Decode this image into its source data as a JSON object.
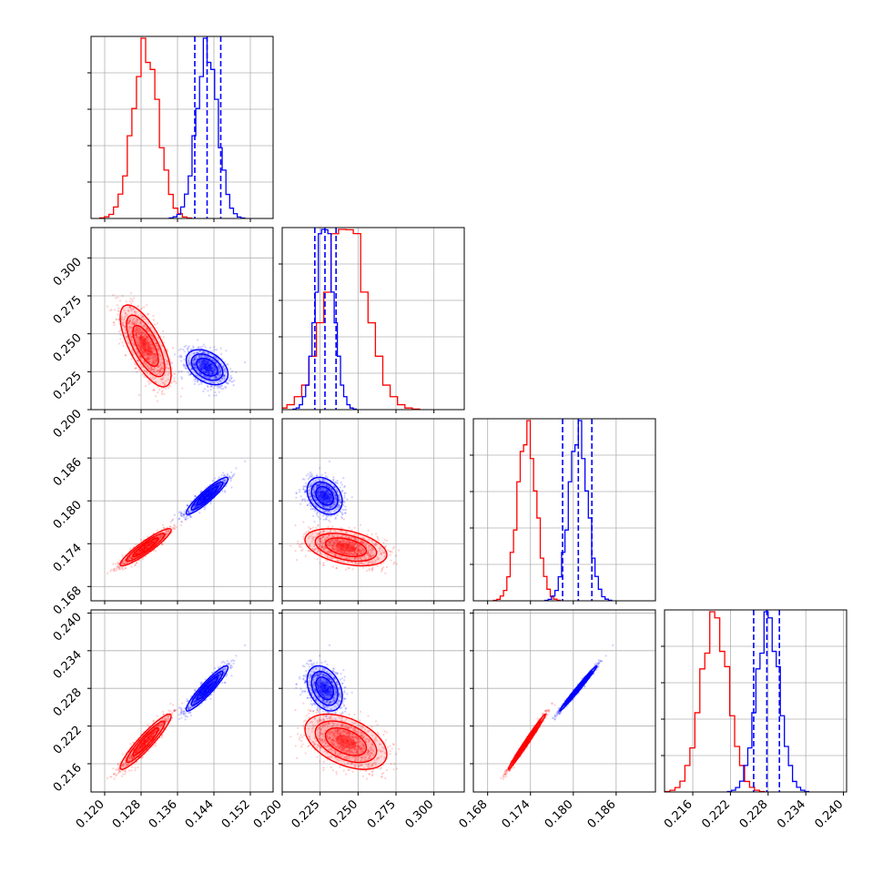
{
  "figure": {
    "type": "corner-plot",
    "grid": true,
    "colors": {
      "series_a": "#ff0000",
      "series_b": "#0000ff",
      "grid": "#b0b0b0"
    }
  },
  "chart_data": {
    "type": "corner",
    "grid": true,
    "series": [
      {
        "color": "#ff0000",
        "mean": [
          0.129,
          0.242,
          0.1735,
          0.2195
        ],
        "std": [
          0.0028,
          0.0135,
          0.0013,
          0.0022
        ],
        "correlations": {
          "0-1": -0.7,
          "0-2": 0.92,
          "0-3": 0.93,
          "1-2": -0.4,
          "1-3": -0.45,
          "2-3": 0.99
        }
      },
      {
        "color": "#0000ff",
        "mean": [
          0.1425,
          0.228,
          0.1807,
          0.228
        ],
        "std": [
          0.0023,
          0.0058,
          0.0013,
          0.0018
        ],
        "correlations": {
          "0-1": -0.4,
          "0-2": 0.92,
          "0-3": 0.93,
          "1-2": -0.3,
          "1-3": -0.35,
          "2-3": 0.99
        },
        "quantiles": [
          [
            0.1398,
            0.1425,
            0.1455
          ],
          [
            0.2215,
            0.2282,
            0.2355
          ],
          [
            0.1785,
            0.1807,
            0.1826
          ],
          [
            0.2257,
            0.2278,
            0.2298
          ]
        ]
      }
    ],
    "parameters": [
      {
        "range": [
          0.117,
          0.157
        ],
        "ticks": [
          "0.120",
          "0.128",
          "0.136",
          "0.144",
          "0.152"
        ],
        "tickvals": [
          0.12,
          0.128,
          0.136,
          0.144,
          0.152
        ]
      },
      {
        "range": [
          0.2,
          0.32
        ],
        "ticks": [
          "0.200",
          "0.225",
          "0.250",
          "0.275",
          "0.300"
        ],
        "tickvals": [
          0.2,
          0.225,
          0.25,
          0.275,
          0.3
        ]
      },
      {
        "range": [
          0.166,
          0.1915
        ],
        "ticks": [
          "0.168",
          "0.174",
          "0.180",
          "0.186"
        ],
        "tickvals": [
          0.168,
          0.174,
          0.18,
          0.186
        ]
      },
      {
        "range": [
          0.2115,
          0.2405
        ],
        "ticks": [
          "0.216",
          "0.222",
          "0.228",
          "0.234",
          "0.240"
        ],
        "tickvals": [
          0.216,
          0.222,
          0.228,
          0.234,
          0.24
        ]
      }
    ]
  }
}
